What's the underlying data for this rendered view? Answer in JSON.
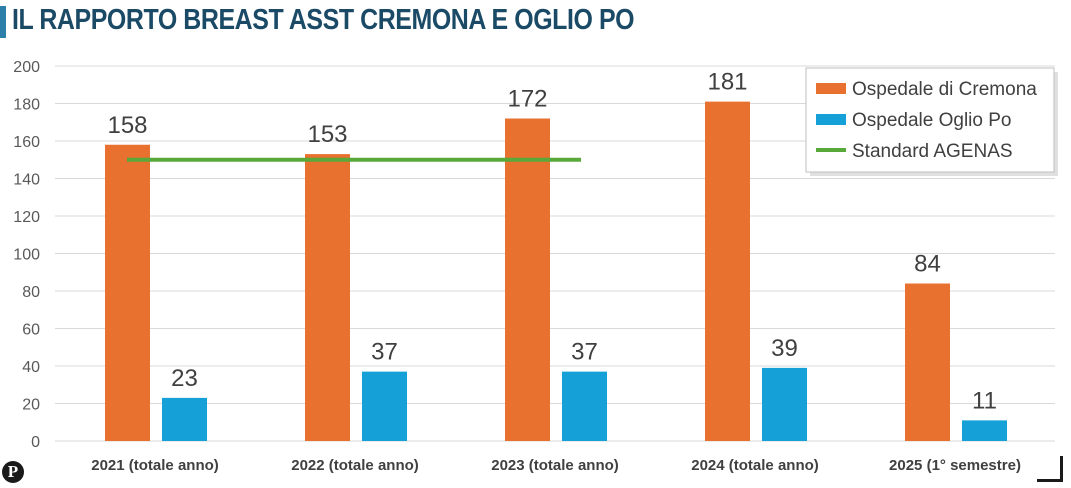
{
  "header": {
    "title": "IL RAPPORTO BREAST ASST CREMONA E OGLIO PO"
  },
  "colors": {
    "title": "#1b4a66",
    "accent_bar": "#2c7fa8",
    "cremona": "#e8712f",
    "oglio": "#16a0d8",
    "agenas": "#58a83a",
    "grid": "#d9d9d9"
  },
  "logo": {
    "glyph": "P"
  },
  "chart_data": {
    "type": "bar",
    "title": "IL RAPPORTO BREAST ASST CREMONA E OGLIO PO",
    "xlabel": "",
    "ylabel": "",
    "ylim": [
      0,
      200
    ],
    "yticks": [
      0,
      20,
      40,
      60,
      80,
      100,
      120,
      140,
      160,
      180,
      200
    ],
    "grid": true,
    "legend_position": "top-right",
    "categories": [
      "2021 (totale anno)",
      "2022 (totale anno)",
      "2023 (totale anno)",
      "2024 (totale anno)",
      "2025 (1° semestre)"
    ],
    "series": [
      {
        "name": "Ospedale di Cremona",
        "type": "bar",
        "values": [
          158,
          153,
          172,
          181,
          84
        ]
      },
      {
        "name": "Ospedale Oglio Po",
        "type": "bar",
        "values": [
          23,
          37,
          37,
          39,
          11
        ]
      },
      {
        "name": "Standard AGENAS",
        "type": "line",
        "values": [
          150,
          150,
          150,
          null,
          null
        ]
      }
    ]
  }
}
